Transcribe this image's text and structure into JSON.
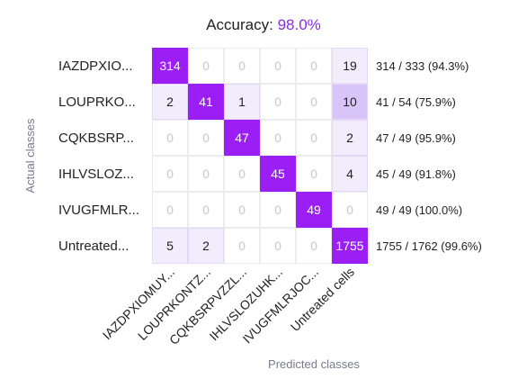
{
  "chart_data": {
    "type": "heatmap",
    "title_label": "Accuracy:",
    "title_value": "98.0%",
    "xlabel": "Predicted classes",
    "ylabel": "Actual classes",
    "row_labels": [
      "IAZDPXIO...",
      "LOUPRKO...",
      "CQKBSRP...",
      "IHLVSLOZ...",
      "IVUGFMLR...",
      "Untreated..."
    ],
    "col_labels": [
      "IAZDPXIOMUY...",
      "LOUPRKONTZ...",
      "CQKBSRPVZZL...",
      "IHLVSLOZUHK...",
      "IVUGFMLRJOC...",
      "Untreated cells"
    ],
    "matrix": [
      [
        314,
        0,
        0,
        0,
        0,
        19
      ],
      [
        2,
        41,
        1,
        0,
        0,
        10
      ],
      [
        0,
        0,
        47,
        0,
        0,
        2
      ],
      [
        0,
        0,
        0,
        45,
        0,
        4
      ],
      [
        0,
        0,
        0,
        0,
        49,
        0
      ],
      [
        5,
        2,
        0,
        0,
        0,
        1755
      ]
    ],
    "row_summaries": [
      "314 / 333 (94.3%)",
      "41 / 54 (75.9%)",
      "47 / 49 (95.9%)",
      "45 / 49 (91.8%)",
      "49 / 49 (100.0%)",
      "1755 / 1762 (99.6%)"
    ],
    "colors": {
      "correct": "#9b1ff5",
      "error_strong": "#d9c4f9",
      "error_light": "#f3ecfd",
      "zero_text": "#c8c8c8",
      "grid": "#ececec"
    }
  }
}
